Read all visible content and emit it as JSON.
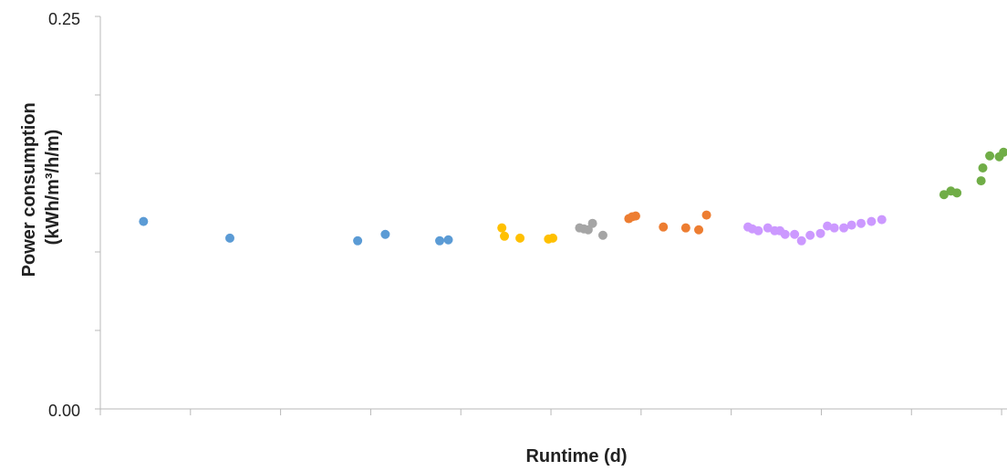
{
  "chart_data": {
    "type": "scatter",
    "xlabel": "Runtime (d)",
    "ylabel": [
      "Power consumption",
      "(kWh/m³/h/m)"
    ],
    "ylim": [
      0,
      0.25
    ],
    "xlim": [
      0,
      105
    ],
    "y_tick_labels": [
      "0.25",
      "0.00"
    ],
    "y_minor_ticks": [
      0.05,
      0.1,
      0.15,
      0.2
    ],
    "x_tick_count": 11,
    "grid": false,
    "legend": "none",
    "series": [
      {
        "color": "#5B9BD5",
        "x": [
          5.0,
          15.0,
          29.8,
          33.0,
          39.3,
          40.3
        ],
        "y": [
          0.1194,
          0.1088,
          0.1071,
          0.1112,
          0.1071,
          0.1077
        ]
      },
      {
        "color": "#FFC000",
        "x": [
          46.5,
          46.8,
          48.6,
          51.9,
          52.4
        ],
        "y": [
          0.1153,
          0.11,
          0.1088,
          0.1082,
          0.1088
        ]
      },
      {
        "color": "#A5A5A5",
        "x": [
          55.5,
          56.0,
          56.5,
          57.0,
          58.2
        ],
        "y": [
          0.1153,
          0.1147,
          0.1141,
          0.1182,
          0.1106
        ]
      },
      {
        "color": "#ED7D31",
        "x": [
          61.2,
          61.6,
          62.0,
          65.2,
          67.8,
          69.3,
          70.2
        ],
        "y": [
          0.1212,
          0.1224,
          0.1229,
          0.1159,
          0.1153,
          0.1141,
          0.1235
        ]
      },
      {
        "color": "#CC99FF",
        "x": [
          75.0,
          75.5,
          76.2,
          77.3,
          78.1,
          78.7,
          79.3,
          80.4,
          81.2,
          82.2,
          83.4,
          84.2,
          85.0,
          86.1,
          87.0,
          88.1,
          89.3,
          90.5
        ],
        "y": [
          0.1159,
          0.1147,
          0.1135,
          0.1153,
          0.1135,
          0.1135,
          0.1112,
          0.1112,
          0.1071,
          0.1106,
          0.1118,
          0.1165,
          0.1153,
          0.1153,
          0.1171,
          0.1182,
          0.1194,
          0.1206
        ]
      },
      {
        "color": "#70AD47",
        "x": [
          97.7,
          98.5,
          99.2,
          102.0,
          102.2,
          103.0,
          104.1,
          104.6
        ],
        "y": [
          0.1365,
          0.1388,
          0.1376,
          0.1453,
          0.1535,
          0.1612,
          0.1606,
          0.1635
        ]
      }
    ]
  }
}
